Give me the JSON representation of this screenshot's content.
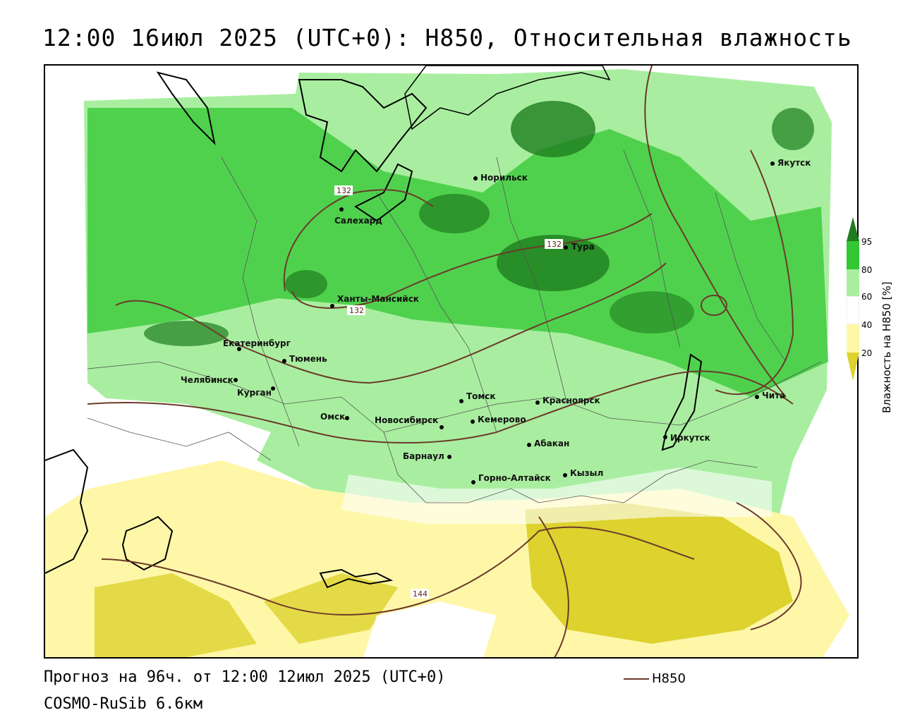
{
  "title": "12:00 16июл 2025 (UTC+0): H850, Относительная влажность",
  "footer": {
    "forecast": "Прогноз на 96ч. от 12:00 12июл 2025 (UTC+0)",
    "model": "COSMO-RuSib 6.6км",
    "contour_legend": "H850"
  },
  "colorbar": {
    "title": "Влажность на H850 [%]",
    "ticks": [
      "95",
      "80",
      "60",
      "40",
      "20"
    ],
    "colors": {
      "c95": "#1e7d1e",
      "c80": "#33c733",
      "c60": "#a9eea0",
      "c50": "#ffffff",
      "c40": "#fff7a8",
      "c20": "#ddd22e"
    }
  },
  "contour_labels": [
    "132",
    "132",
    "132",
    "144"
  ],
  "cities": [
    {
      "name": "Якутск"
    },
    {
      "name": "Норильск"
    },
    {
      "name": "Салехард"
    },
    {
      "name": "Тура"
    },
    {
      "name": "Ханты-Мансийск"
    },
    {
      "name": "Екатеринбург"
    },
    {
      "name": "Тюмень"
    },
    {
      "name": "Челябинск"
    },
    {
      "name": "Курган"
    },
    {
      "name": "Омск"
    },
    {
      "name": "Томск"
    },
    {
      "name": "Красноярск"
    },
    {
      "name": "Новосибирск"
    },
    {
      "name": "Кемерово"
    },
    {
      "name": "Абакан"
    },
    {
      "name": "Барнаул"
    },
    {
      "name": "Горно-Алтайск"
    },
    {
      "name": "Кызыл"
    },
    {
      "name": "Иркутск"
    },
    {
      "name": "Чита"
    }
  ]
}
